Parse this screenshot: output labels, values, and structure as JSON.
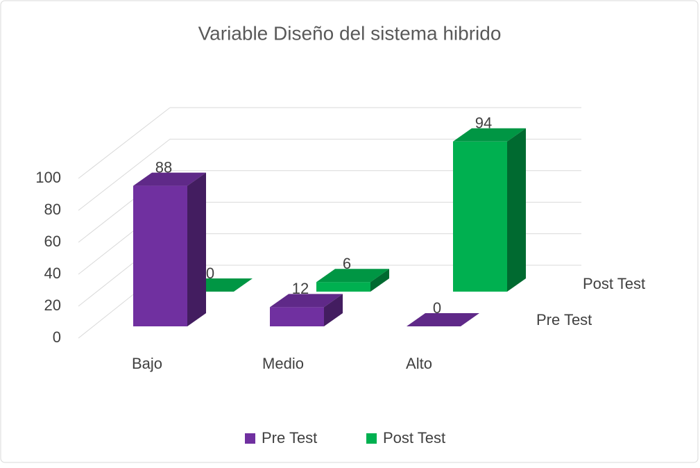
{
  "chart_data": {
    "type": "bar3d",
    "title": "Variable Diseño del sistema hibrido",
    "categories": [
      "Bajo",
      "Medio",
      "Alto"
    ],
    "series": [
      {
        "name": "Pre Test",
        "color": "#7030a0",
        "values": [
          88,
          12,
          0
        ]
      },
      {
        "name": "Post Test",
        "color": "#00b050",
        "values": [
          0,
          6,
          94
        ]
      }
    ],
    "ylim": [
      0,
      100
    ],
    "yticks": [
      0,
      20,
      40,
      60,
      80,
      100
    ],
    "grid": true,
    "legend": "bottom"
  }
}
